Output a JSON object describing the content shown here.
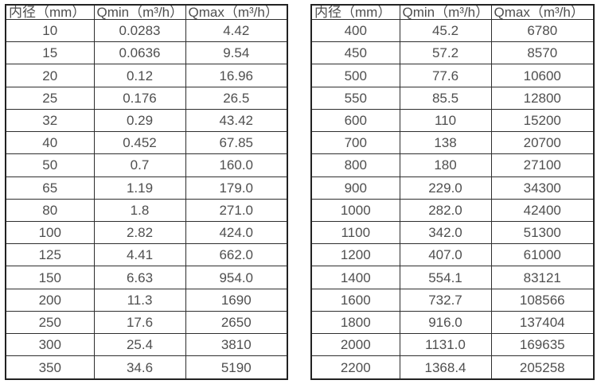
{
  "colors": {
    "background": "#ffffff",
    "border": "#2e2e2e",
    "text": "#4f4f4f"
  },
  "headers": {
    "diameter": "内径（mm）",
    "qmin": "Qmin（m³/h）",
    "qmax": "Qmax（m³/h）"
  },
  "tables": [
    {
      "name": "small-diameters",
      "rows": [
        [
          "10",
          "0.0283",
          "4.42"
        ],
        [
          "15",
          "0.0636",
          "9.54"
        ],
        [
          "20",
          "0.12",
          "16.96"
        ],
        [
          "25",
          "0.176",
          "26.5"
        ],
        [
          "32",
          "0.29",
          "43.42"
        ],
        [
          "40",
          "0.452",
          "67.85"
        ],
        [
          "50",
          "0.7",
          "160.0"
        ],
        [
          "65",
          "1.19",
          "179.0"
        ],
        [
          "80",
          "1.8",
          "271.0"
        ],
        [
          "100",
          "2.82",
          "424.0"
        ],
        [
          "125",
          "4.41",
          "662.0"
        ],
        [
          "150",
          "6.63",
          "954.0"
        ],
        [
          "200",
          "11.3",
          "1690"
        ],
        [
          "250",
          "17.6",
          "2650"
        ],
        [
          "300",
          "25.4",
          "3810"
        ],
        [
          "350",
          "34.6",
          "5190"
        ]
      ]
    },
    {
      "name": "large-diameters",
      "rows": [
        [
          "400",
          "45.2",
          "6780"
        ],
        [
          "450",
          "57.2",
          "8570"
        ],
        [
          "500",
          "77.6",
          "10600"
        ],
        [
          "550",
          "85.5",
          "12800"
        ],
        [
          "600",
          "110",
          "15200"
        ],
        [
          "700",
          "138",
          "20700"
        ],
        [
          "800",
          "180",
          "27100"
        ],
        [
          "900",
          "229.0",
          "34300"
        ],
        [
          "1000",
          "282.0",
          "42400"
        ],
        [
          "1100",
          "342.0",
          "51300"
        ],
        [
          "1200",
          "407.0",
          "61000"
        ],
        [
          "1400",
          "554.1",
          "83121"
        ],
        [
          "1600",
          "732.7",
          "108566"
        ],
        [
          "1800",
          "916.0",
          "137404"
        ],
        [
          "2000",
          "1131.0",
          "169635"
        ],
        [
          "2200",
          "1368.4",
          "205258"
        ]
      ]
    }
  ]
}
